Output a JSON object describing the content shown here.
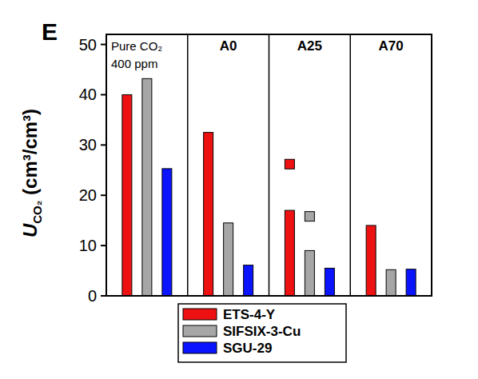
{
  "chart_data": {
    "type": "bar",
    "title": "E",
    "y_label": "UCO₂ (cm³/cm³)",
    "categories": [
      "Pure CO₂\n400 ppm",
      "A0",
      "A25",
      "A70"
    ],
    "series": [
      {
        "name": "ETS-4-Y",
        "color": "#ee1111",
        "values": [
          40,
          32.5,
          17,
          14
        ],
        "marker": "square",
        "marker_values": [
          null,
          null,
          26.2,
          null
        ]
      },
      {
        "name": "SIFSIX-3-Cu",
        "color": "#a6a6a6",
        "values": [
          43.2,
          14.5,
          9,
          5.2
        ],
        "marker": "square",
        "marker_values": [
          null,
          null,
          15.8,
          null
        ]
      },
      {
        "name": "SGU-29",
        "color": "#0a14ff",
        "values": [
          25.3,
          6.1,
          5.5,
          5.3
        ]
      }
    ],
    "ylim": [
      0,
      52
    ],
    "yticks": [
      0,
      10,
      20,
      30,
      40,
      50
    ],
    "legend": "bottom"
  }
}
